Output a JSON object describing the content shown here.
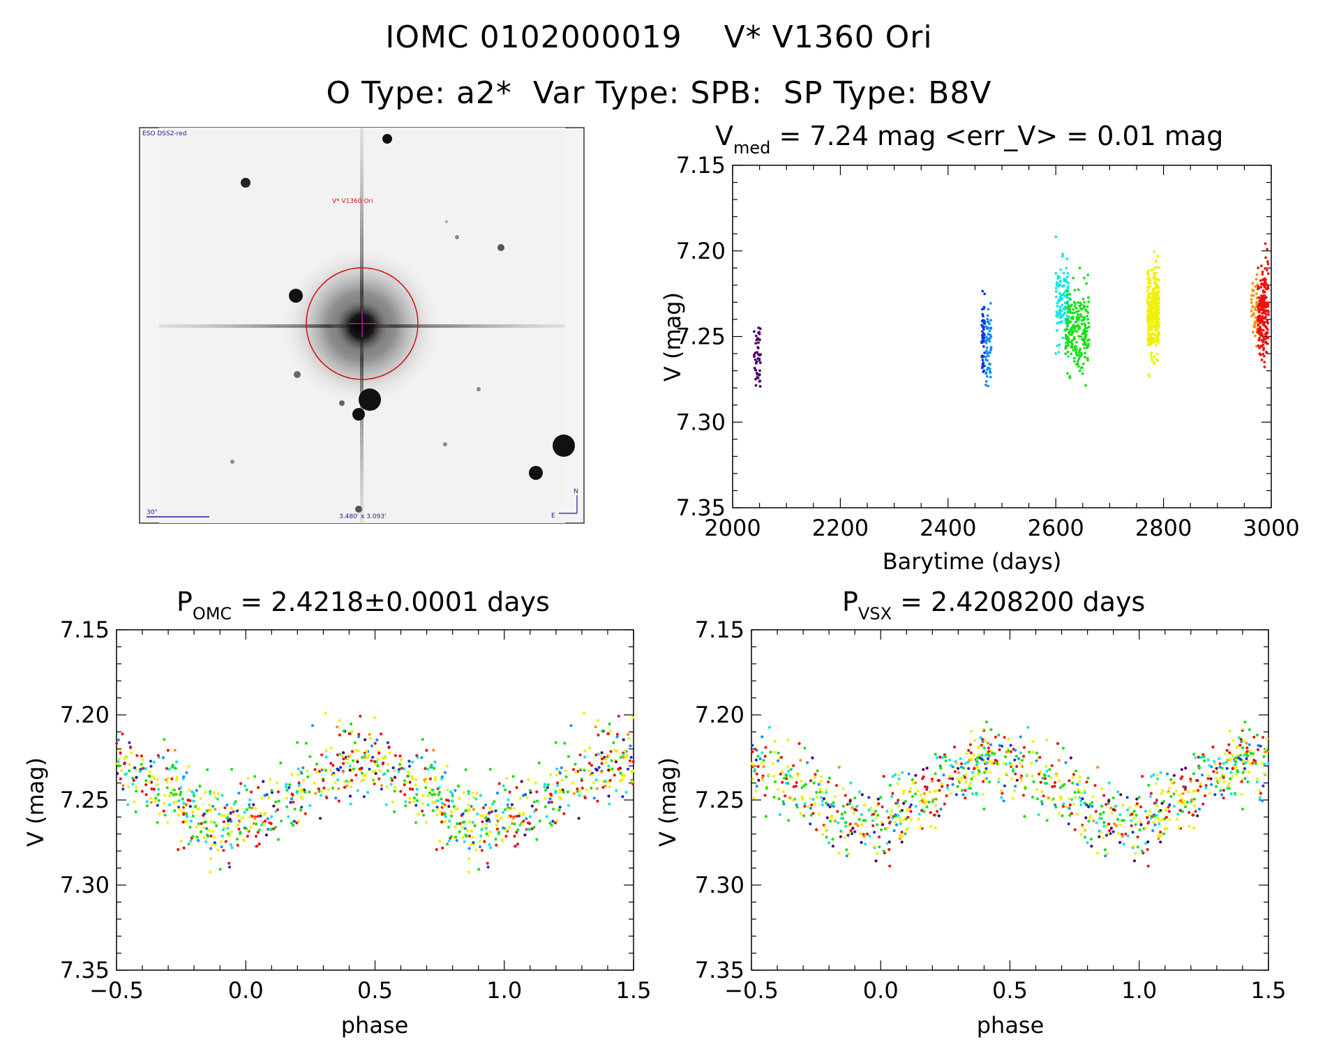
{
  "header": {
    "title_line1": "IOMC 0102000019    V* V1360 Ori",
    "title_line2": "O Type: a2*  Var Type: SPB:  SP Type: B8V"
  },
  "finder_image": {
    "survey_label": "ESO DSS2-red",
    "object_label": "V* V1360 Ori",
    "scale_label": "30\"",
    "fov_label": "3.480' x 3.093'",
    "north_label": "N",
    "east_label": "E",
    "colors": {
      "marker": "#d01010",
      "annotation": "#1a1aa0"
    }
  },
  "series_colors": {
    "p1": "#4b0066",
    "p2": "#0838e0",
    "p3": "#1090ff",
    "p4": "#10e6e6",
    "p5": "#18e018",
    "p6": "#f0f000",
    "p7": "#ff9000",
    "p8": "#ee1010"
  },
  "chart_data": [
    {
      "id": "lightcurve",
      "type": "scatter",
      "title_main": "V",
      "title_sub": "med",
      "title_rest": " = 7.24 mag <err_V> = 0.01 mag",
      "xlabel": "Barytime (days)",
      "ylabel": "V (mag)",
      "xlim": [
        2000,
        3000
      ],
      "ylim": [
        7.35,
        7.15
      ],
      "xticks": [
        "2000",
        "2200",
        "2400",
        "2600",
        "2800",
        "3000"
      ],
      "yticks": [
        "7.15",
        "7.20",
        "7.25",
        "7.30",
        "7.35"
      ],
      "series": [
        {
          "color_key": "p1",
          "x_range": [
            2040,
            2052
          ],
          "y_center": 7.265,
          "y_spread": 0.02,
          "n": 45
        },
        {
          "color_key": "p2",
          "x_range": [
            2462,
            2468
          ],
          "y_center": 7.25,
          "y_spread": 0.02,
          "n": 50
        },
        {
          "color_key": "p3",
          "x_range": [
            2470,
            2480
          ],
          "y_center": 7.255,
          "y_spread": 0.02,
          "n": 60
        },
        {
          "color_key": "p4",
          "x_range": [
            2600,
            2625
          ],
          "y_center": 7.23,
          "y_spread": 0.02,
          "n": 120
        },
        {
          "color_key": "p5",
          "x_range": [
            2618,
            2662
          ],
          "y_center": 7.245,
          "y_spread": 0.022,
          "n": 220
        },
        {
          "color_key": "p6",
          "x_range": [
            2770,
            2792
          ],
          "y_center": 7.235,
          "y_spread": 0.022,
          "n": 320
        },
        {
          "color_key": "p7",
          "x_range": [
            2962,
            2975
          ],
          "y_center": 7.235,
          "y_spread": 0.022,
          "n": 45
        },
        {
          "color_key": "p8",
          "x_range": [
            2975,
            2995
          ],
          "y_center": 7.235,
          "y_spread": 0.025,
          "n": 200
        }
      ]
    },
    {
      "id": "phase_omc",
      "type": "scatter",
      "title_main": "P",
      "title_sub": "OMC",
      "title_rest": " = 2.4218±0.0001 days",
      "xlabel": "phase",
      "ylabel": "V (mag)",
      "xlim": [
        -0.5,
        1.5
      ],
      "ylim": [
        7.35,
        7.15
      ],
      "xticks": [
        "−0.5",
        "0.0",
        "0.5",
        "1.0",
        "1.5"
      ],
      "yticks": [
        "7.15",
        "7.20",
        "7.25",
        "7.30",
        "7.35"
      ],
      "period_days": 2.4218,
      "phase_shift": 0.0,
      "points_per_cycle": 520
    },
    {
      "id": "phase_vsx",
      "type": "scatter",
      "title_main": "P",
      "title_sub": "VSX",
      "title_rest": " = 2.4208200 days",
      "xlabel": "phase",
      "ylabel": "V (mag)",
      "xlim": [
        -0.5,
        1.5
      ],
      "ylim": [
        7.35,
        7.15
      ],
      "xticks": [
        "−0.5",
        "0.0",
        "0.5",
        "1.0",
        "1.5"
      ],
      "yticks": [
        "7.15",
        "7.20",
        "7.25",
        "7.30",
        "7.35"
      ],
      "period_days": 2.42082,
      "phase_shift": 0.15,
      "points_per_cycle": 520
    }
  ]
}
